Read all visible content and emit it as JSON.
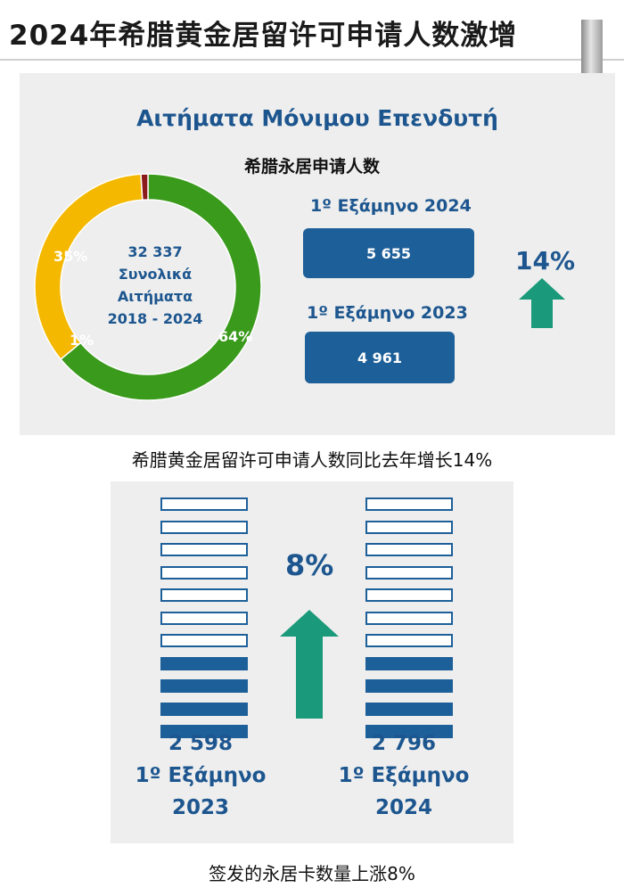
{
  "header": {
    "title": "2024年希腊黄金居留许可申请人数激增"
  },
  "section1": {
    "title": "Αιτήματα Μόνιμου Επενδυτή",
    "subtitle": "希腊永居申请人数",
    "donut_center": [
      "32 337",
      "Συνολικά",
      "Αιτήματα",
      "2018 - 2024"
    ],
    "growth_label": "14%",
    "caption": "希腊黄金居留许可申请人数同比去年增长14%"
  },
  "section2": {
    "growth_label": "8%",
    "left_label": [
      "2 598",
      "1º Εξάμηνο",
      "2023"
    ],
    "right_label": [
      "2 796",
      "1º Εξάμηνο",
      "2024"
    ],
    "caption": "签发的永居卡数量上涨8%"
  },
  "chart_data": [
    {
      "type": "pie",
      "categories": [
        "64%",
        "35%",
        "1%"
      ],
      "values": [
        64,
        35,
        1
      ],
      "colors": [
        "#3a9a1c",
        "#f4b800",
        "#8b1a1a"
      ]
    },
    {
      "type": "bar",
      "categories": [
        "1º Εξάμηνο 2024",
        "1º Εξάμηνο 2023"
      ],
      "values": [
        5655,
        4961
      ],
      "value_labels": [
        "5 655",
        "4 961"
      ]
    },
    {
      "type": "bar",
      "categories": [
        "1º Εξάμηνο 2023",
        "1º Εξάμηνο 2024"
      ],
      "values": [
        2598,
        2796
      ],
      "filled_stripes": [
        4,
        4
      ],
      "total_stripes": [
        11,
        11
      ]
    }
  ],
  "colors": {
    "blue": "#1d5f99",
    "green_arrow": "#1a9a7a",
    "dark_blue_text": "#1d568f"
  }
}
